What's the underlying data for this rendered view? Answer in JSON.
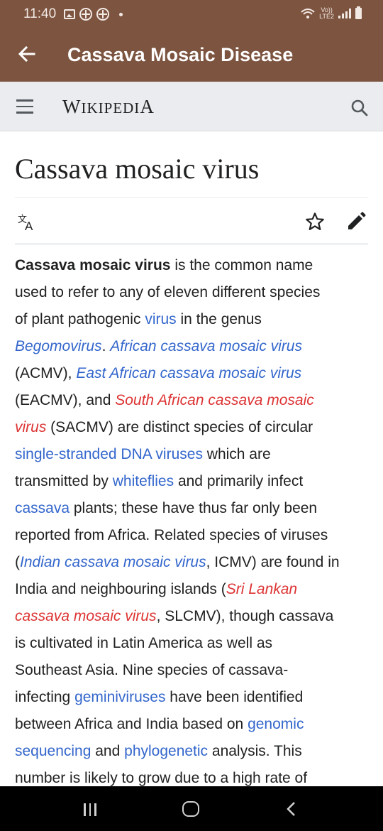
{
  "status_bar": {
    "time": "11:40",
    "network": "LTE2",
    "volte": "Vo))",
    "icons": [
      "gallery-icon",
      "app-icon",
      "app-icon",
      "dot-icon",
      "wifi-icon",
      "signal-icon",
      "battery-icon"
    ]
  },
  "app_bar": {
    "title": "Cassava Mosaic Disease",
    "background_color": "#7c5440"
  },
  "wiki_header": {
    "logo_initial_w": "W",
    "logo_rest_ikipedi": "IKIPEDI",
    "logo_final_a": "A"
  },
  "article": {
    "title": "Cassava mosaic virus",
    "link_color": "#3366cc",
    "redlink_color": "#dd3333",
    "lines": [
      [
        {
          "t": "Cassava mosaic virus",
          "s": "bold"
        },
        {
          "t": " is the common name",
          "s": "plain"
        }
      ],
      [
        {
          "t": "used to refer to any of eleven different species",
          "s": "plain"
        }
      ],
      [
        {
          "t": "of plant pathogenic ",
          "s": "plain"
        },
        {
          "t": "virus",
          "s": "link"
        },
        {
          "t": " in the genus",
          "s": "plain"
        }
      ],
      [
        {
          "t": "Begomovirus",
          "s": "link-italic"
        },
        {
          "t": ". ",
          "s": "plain"
        },
        {
          "t": "African cassava mosaic virus",
          "s": "link-italic"
        }
      ],
      [
        {
          "t": "(ACMV), ",
          "s": "plain"
        },
        {
          "t": "East African cassava mosaic virus",
          "s": "link-italic"
        }
      ],
      [
        {
          "t": "(EACMV), and ",
          "s": "plain"
        },
        {
          "t": "South African cassava mosaic",
          "s": "red-italic"
        }
      ],
      [
        {
          "t": "virus",
          "s": "red-italic"
        },
        {
          "t": " (SACMV) are distinct species of circular",
          "s": "plain"
        }
      ],
      [
        {
          "t": "single-stranded DNA viruses",
          "s": "link"
        },
        {
          "t": " which are",
          "s": "plain"
        }
      ],
      [
        {
          "t": "transmitted by ",
          "s": "plain"
        },
        {
          "t": "whiteflies",
          "s": "link"
        },
        {
          "t": " and primarily infect",
          "s": "plain"
        }
      ],
      [
        {
          "t": "cassava",
          "s": "link"
        },
        {
          "t": " plants; these have thus far only been",
          "s": "plain"
        }
      ],
      [
        {
          "t": "reported from Africa. Related species of viruses",
          "s": "plain"
        }
      ],
      [
        {
          "t": "(",
          "s": "plain"
        },
        {
          "t": "Indian cassava mosaic virus",
          "s": "link-italic"
        },
        {
          "t": ", ICMV) are found in",
          "s": "plain"
        }
      ],
      [
        {
          "t": "India and neighbouring islands (",
          "s": "plain"
        },
        {
          "t": "Sri Lankan",
          "s": "red-italic"
        }
      ],
      [
        {
          "t": "cassava mosaic virus",
          "s": "red-italic"
        },
        {
          "t": ", SLCMV), though cassava",
          "s": "plain"
        }
      ],
      [
        {
          "t": "is cultivated in Latin America as well as",
          "s": "plain"
        }
      ],
      [
        {
          "t": "Southeast Asia. Nine species of cassava-",
          "s": "plain"
        }
      ],
      [
        {
          "t": "infecting ",
          "s": "plain"
        },
        {
          "t": "geminiviruses",
          "s": "link"
        },
        {
          "t": " have been identified",
          "s": "plain"
        }
      ],
      [
        {
          "t": "between Africa and India based on ",
          "s": "plain"
        },
        {
          "t": "genomic",
          "s": "link"
        }
      ],
      [
        {
          "t": "sequencing",
          "s": "link"
        },
        {
          "t": " and ",
          "s": "plain"
        },
        {
          "t": "phylogenetic",
          "s": "link"
        },
        {
          "t": " analysis. This",
          "s": "plain"
        }
      ],
      [
        {
          "t": "number is likely to grow due to a high rate of",
          "s": "plain"
        }
      ]
    ]
  },
  "nav_bar": {
    "buttons": [
      "recent-apps-icon",
      "home-icon",
      "back-icon"
    ]
  }
}
